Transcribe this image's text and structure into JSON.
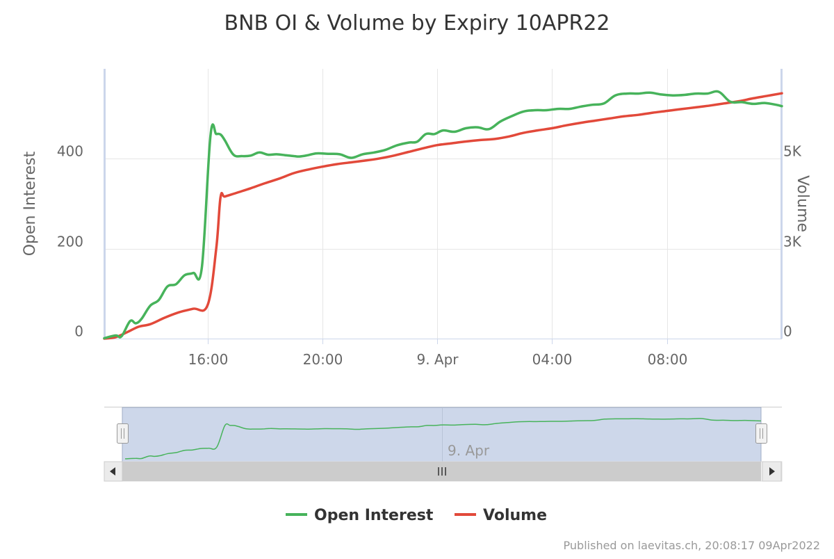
{
  "chart_data": {
    "type": "line",
    "title": "BNB OI & Volume by Expiry 10APR22",
    "credit": "Published on laevitas.ch, 20:08:17 09Apr2022",
    "x_tick_labels": [
      "16:00",
      "20:00",
      "9. Apr",
      "04:00",
      "08:00"
    ],
    "x_ticks_hours": [
      16,
      20,
      24,
      28,
      32
    ],
    "navigator_label": "9. Apr",
    "x_range_hours": [
      12.4,
      36.0
    ],
    "left_axis": {
      "title": "Open Interest",
      "range": [
        0,
        600
      ],
      "ticks": [
        0,
        200,
        400
      ],
      "tick_labels": [
        "0",
        "200",
        "400"
      ]
    },
    "right_axis": {
      "title": "Volume",
      "range": [
        0,
        7500
      ],
      "ticks": [
        0,
        2500,
        5000
      ],
      "tick_labels": [
        "0",
        "3K",
        "5K"
      ]
    },
    "legend_position": "bottom-center",
    "series": [
      {
        "name": "Open Interest",
        "color": "#47b35b",
        "axis": "left",
        "x_hours": [
          12.4,
          12.8,
          13.0,
          13.3,
          13.5,
          13.7,
          14.0,
          14.3,
          14.6,
          14.9,
          15.2,
          15.5,
          15.8,
          16.1,
          16.3,
          16.45,
          16.6,
          16.9,
          17.2,
          17.5,
          17.8,
          18.1,
          18.4,
          18.7,
          19.0,
          19.2,
          19.5,
          19.8,
          20.2,
          20.6,
          21.0,
          21.4,
          21.8,
          22.2,
          22.6,
          23.0,
          23.3,
          23.6,
          23.9,
          24.2,
          24.6,
          25.0,
          25.4,
          25.8,
          26.2,
          26.6,
          27.0,
          27.4,
          27.8,
          28.2,
          28.6,
          29.0,
          29.4,
          29.8,
          30.2,
          30.6,
          31.0,
          31.4,
          31.8,
          32.2,
          32.6,
          33.0,
          33.4,
          33.8,
          34.2,
          34.6,
          35.0,
          35.4,
          35.8,
          36.0
        ],
        "values": [
          1,
          7,
          5,
          39,
          34,
          44,
          73,
          86,
          116,
          121,
          141,
          146,
          159,
          452,
          455,
          454,
          441,
          409,
          406,
          407,
          414,
          409,
          410,
          408,
          406,
          405,
          408,
          412,
          411,
          410,
          402,
          410,
          414,
          420,
          430,
          436,
          438,
          455,
          455,
          463,
          460,
          468,
          470,
          466,
          483,
          495,
          505,
          508,
          508,
          511,
          511,
          516,
          520,
          523,
          541,
          545,
          545,
          547,
          543,
          541,
          542,
          545,
          545,
          549,
          527,
          526,
          522,
          524,
          520,
          517
        ]
      },
      {
        "name": "Volume",
        "color": "#e2493a",
        "axis": "right",
        "x_hours": [
          12.4,
          12.8,
          13.2,
          13.6,
          14.0,
          14.5,
          15.0,
          15.5,
          16.0,
          16.3,
          16.45,
          16.6,
          17.0,
          17.5,
          18.0,
          18.5,
          19.0,
          19.5,
          20.0,
          20.5,
          21.0,
          21.5,
          22.0,
          22.5,
          23.0,
          23.5,
          24.0,
          24.5,
          25.0,
          25.5,
          26.0,
          26.5,
          27.0,
          27.5,
          28.0,
          28.5,
          29.0,
          29.5,
          30.0,
          30.5,
          31.0,
          31.5,
          32.0,
          32.5,
          33.0,
          33.5,
          34.0,
          34.5,
          35.0,
          35.5,
          36.0
        ],
        "values": [
          0,
          40,
          180,
          330,
          400,
          580,
          730,
          830,
          930,
          2500,
          3930,
          3950,
          4050,
          4180,
          4320,
          4450,
          4600,
          4700,
          4780,
          4850,
          4900,
          4950,
          5010,
          5090,
          5190,
          5290,
          5380,
          5430,
          5480,
          5520,
          5550,
          5620,
          5720,
          5790,
          5850,
          5930,
          6000,
          6060,
          6120,
          6180,
          6220,
          6280,
          6330,
          6380,
          6430,
          6480,
          6540,
          6600,
          6680,
          6750,
          6820
        ]
      }
    ],
    "navigator_series": "Open Interest"
  }
}
